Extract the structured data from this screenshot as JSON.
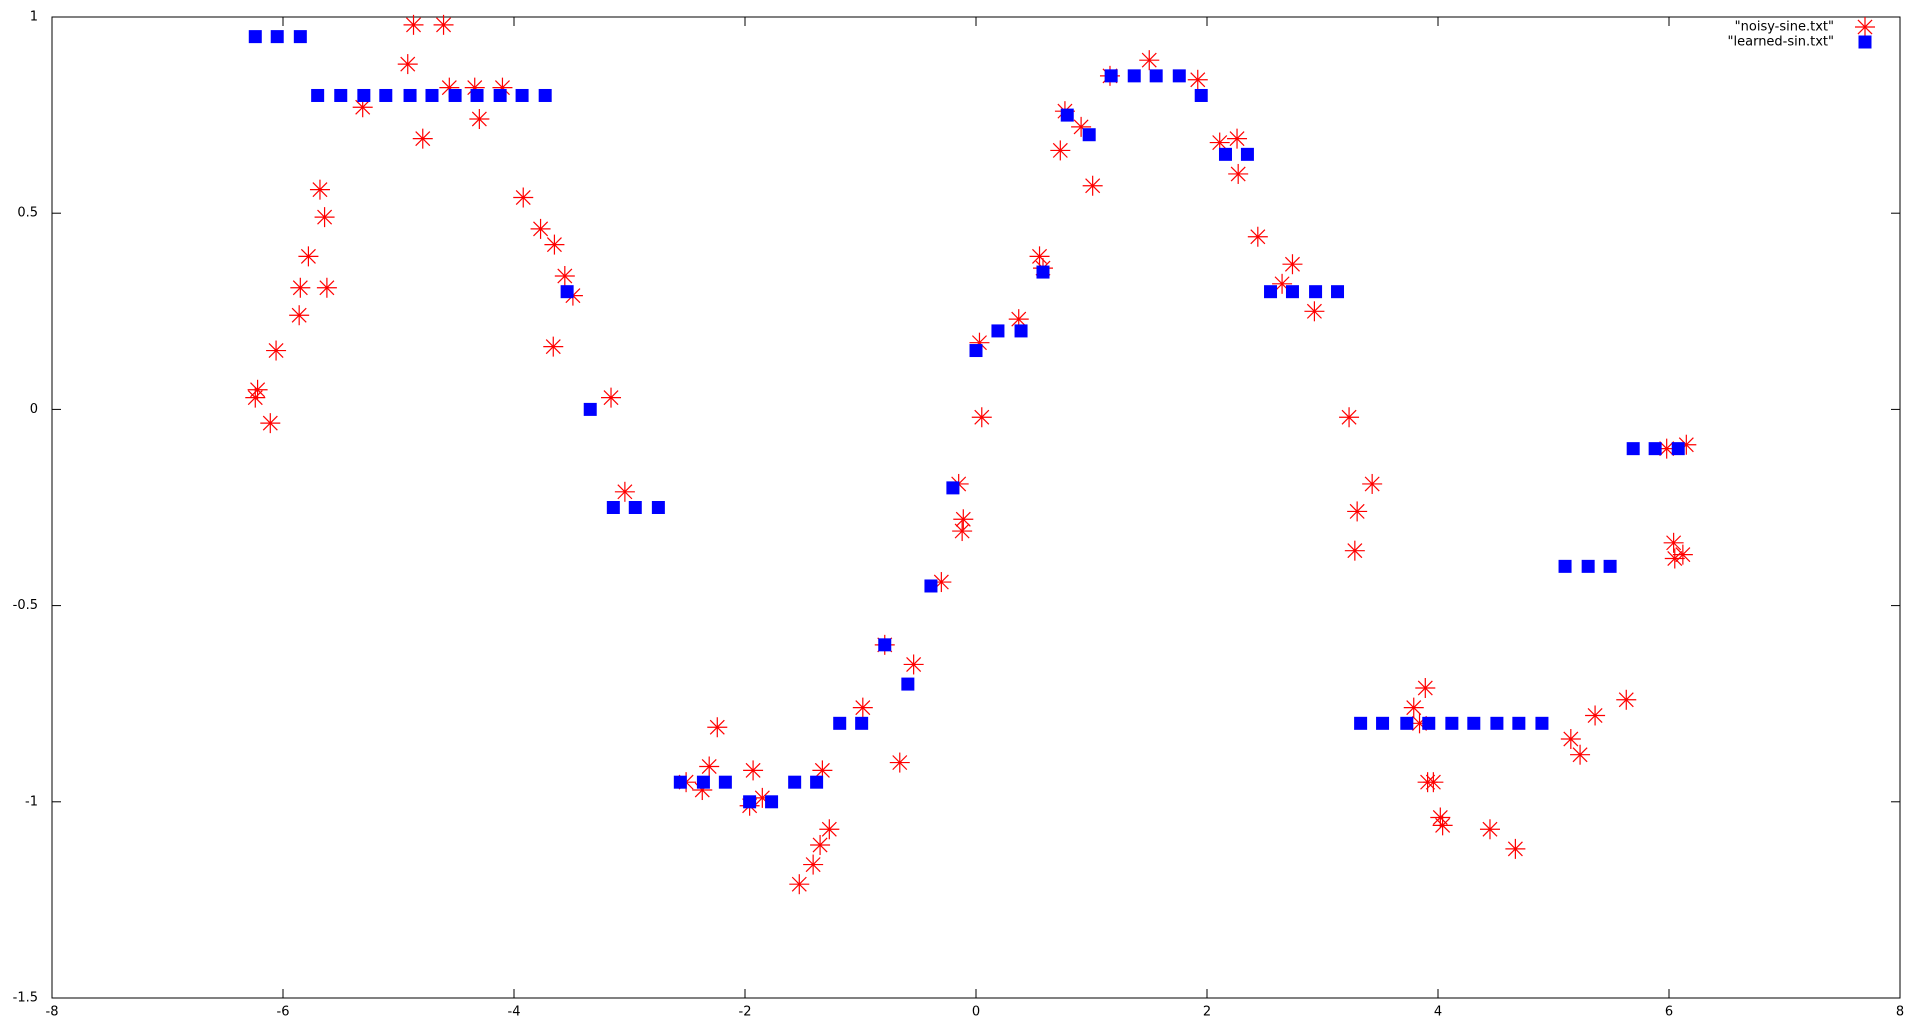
{
  "chart_data": {
    "type": "scatter",
    "xlim": [
      -8,
      8
    ],
    "xticks": [
      -8,
      -6,
      -4,
      -2,
      0,
      2,
      4,
      6,
      8
    ],
    "ylim": [
      -1.5,
      1
    ],
    "yticks": [
      -1.5,
      -1,
      -0.5,
      0,
      0.5,
      1
    ],
    "legend": "upper right",
    "series": [
      {
        "name": "\"noisy-sine.txt\"",
        "color": "#ff0000",
        "marker": "star",
        "x": [
          -6.24,
          -6.22,
          -6.11,
          -6.06,
          -5.86,
          -5.85,
          -5.78,
          -5.68,
          -5.64,
          -5.62,
          -5.31,
          -4.92,
          -4.87,
          -4.79,
          -4.61,
          -4.56,
          -4.34,
          -4.3,
          -4.1,
          -3.92,
          -3.77,
          -3.65,
          -3.66,
          -3.56,
          -3.49,
          -3.16,
          -3.04,
          -2.51,
          -2.37,
          -2.31,
          -2.24,
          -1.96,
          -1.93,
          -1.85,
          -1.53,
          -1.41,
          -1.35,
          -1.33,
          -1.27,
          -0.98,
          -0.79,
          -0.66,
          -0.54,
          -0.3,
          -0.15,
          -0.11,
          -0.12,
          0.03,
          0.05,
          0.37,
          0.55,
          0.58,
          0.73,
          0.77,
          0.91,
          1.01,
          1.16,
          1.5,
          1.92,
          2.11,
          2.26,
          2.27,
          2.44,
          2.65,
          2.74,
          2.93,
          3.23,
          3.3,
          3.28,
          3.43,
          3.79,
          3.84,
          3.89,
          3.91,
          3.96,
          4.02,
          4.04,
          4.45,
          4.67,
          5.15,
          5.23,
          5.36,
          5.63,
          6.04,
          6.05,
          6.12,
          5.98,
          6.15
        ],
        "values": [
          0.03,
          0.05,
          -0.035,
          0.15,
          0.24,
          0.31,
          0.39,
          0.56,
          0.49,
          0.31,
          0.77,
          0.88,
          0.98,
          0.69,
          0.98,
          0.82,
          0.82,
          0.74,
          0.82,
          0.54,
          0.46,
          0.42,
          0.16,
          0.34,
          0.29,
          0.03,
          -0.21,
          -0.95,
          -0.97,
          -0.91,
          -0.81,
          -1.01,
          -0.92,
          -0.99,
          -1.21,
          -1.16,
          -1.11,
          -0.92,
          -1.07,
          -0.76,
          -0.6,
          -0.9,
          -0.65,
          -0.44,
          -0.19,
          -0.28,
          -0.31,
          0.17,
          -0.02,
          0.23,
          0.39,
          0.36,
          0.66,
          0.76,
          0.72,
          0.57,
          0.85,
          0.89,
          0.84,
          0.68,
          0.69,
          0.6,
          0.44,
          0.32,
          0.37,
          0.25,
          -0.02,
          -0.26,
          -0.36,
          -0.19,
          -0.76,
          -0.8,
          -0.71,
          -0.95,
          -0.95,
          -1.04,
          -1.06,
          -1.07,
          -1.12,
          -0.84,
          -0.88,
          -0.78,
          -0.74,
          -0.34,
          -0.38,
          -0.37,
          -0.1,
          -0.09
        ]
      },
      {
        "name": "\"learned-sin.txt\"",
        "color": "#0000ff",
        "marker": "square",
        "x": [
          -6.24,
          -6.05,
          -5.85,
          -5.7,
          -5.5,
          -5.3,
          -5.11,
          -4.9,
          -4.71,
          -4.51,
          -4.32,
          -4.12,
          -3.93,
          -3.73,
          -3.54,
          -3.34,
          -3.14,
          -2.95,
          -2.75,
          -2.56,
          -2.36,
          -2.17,
          -1.96,
          -1.77,
          -1.57,
          -1.38,
          -1.18,
          -0.99,
          -0.79,
          -0.59,
          -0.39,
          -0.2,
          0,
          0.19,
          0.39,
          0.58,
          0.79,
          0.98,
          1.17,
          1.37,
          1.56,
          1.76,
          1.95,
          2.16,
          2.35,
          2.55,
          2.74,
          2.94,
          3.13,
          3.33,
          3.52,
          3.73,
          3.92,
          4.12,
          4.31,
          4.51,
          4.7,
          4.9,
          5.1,
          5.3,
          5.49,
          5.69,
          5.88,
          6.08
        ],
        "values": [
          0.95,
          0.95,
          0.95,
          0.8,
          0.8,
          0.8,
          0.8,
          0.8,
          0.8,
          0.8,
          0.8,
          0.8,
          0.8,
          0.8,
          0.3,
          0,
          -0.25,
          -0.25,
          -0.25,
          -0.95,
          -0.95,
          -0.95,
          -1,
          -1,
          -0.95,
          -0.95,
          -0.8,
          -0.8,
          -0.6,
          -0.7,
          -0.45,
          -0.2,
          0.15,
          0.2,
          0.2,
          0.35,
          0.75,
          0.7,
          0.85,
          0.85,
          0.85,
          0.85,
          0.8,
          0.65,
          0.65,
          0.3,
          0.3,
          0.3,
          0.3,
          -0.8,
          -0.8,
          -0.8,
          -0.8,
          -0.8,
          -0.8,
          -0.8,
          -0.8,
          -0.8,
          -0.4,
          -0.4,
          -0.4,
          -0.1,
          -0.1,
          -0.1
        ]
      }
    ]
  }
}
